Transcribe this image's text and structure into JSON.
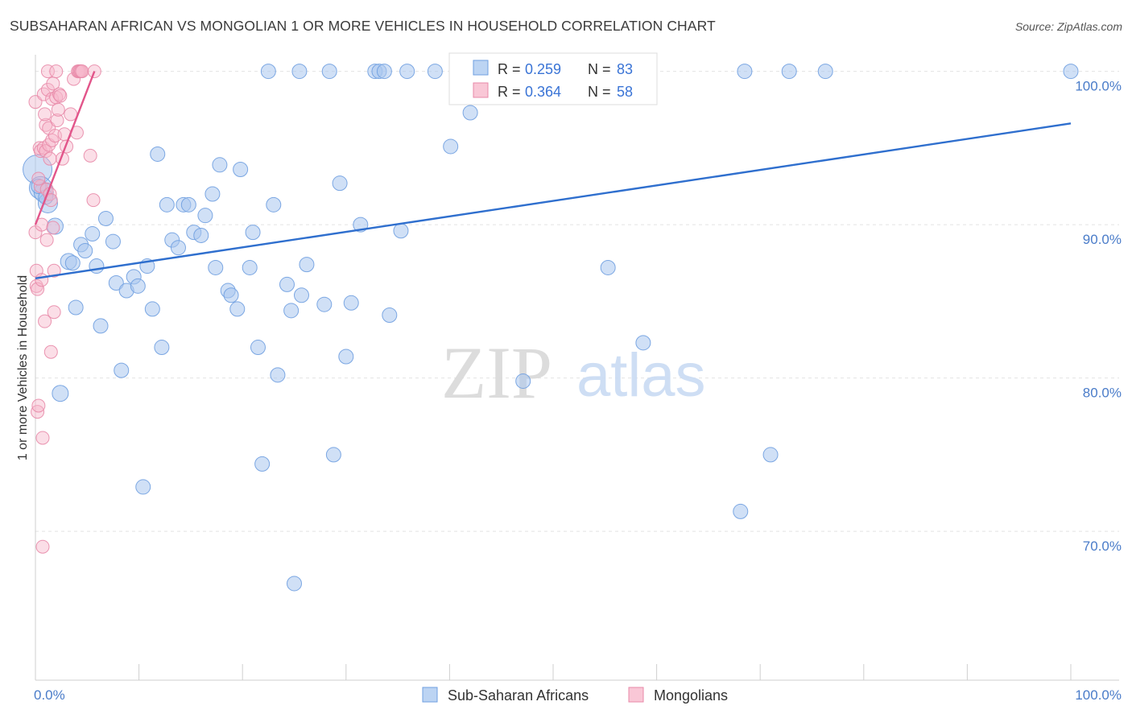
{
  "title": "SUBSAHARAN AFRICAN VS MONGOLIAN 1 OR MORE VEHICLES IN HOUSEHOLD CORRELATION CHART",
  "source": "Source: ZipAtlas.com",
  "watermark": {
    "zip": "ZIP",
    "atlas": "atlas"
  },
  "legend_top": [
    {
      "r_label": "R =",
      "r_value": "0.259",
      "n_label": "N =",
      "n_value": "83",
      "color": "#a9c6ef"
    },
    {
      "r_label": "R =",
      "r_value": "0.364",
      "n_label": "N =",
      "n_value": "58",
      "color": "#f6b5c9"
    }
  ],
  "legend_bottom": [
    {
      "label": "Sub-Saharan Africans",
      "color": "#a9c6ef"
    },
    {
      "label": "Mongolians",
      "color": "#f6b5c9"
    }
  ],
  "chart_data": {
    "type": "scatter",
    "xlabel": "",
    "ylabel": "1 or more Vehicles in Household",
    "xlim": [
      0,
      100
    ],
    "ylim": [
      60.3,
      101.5
    ],
    "x_tick_labels": [
      {
        "value": 0,
        "label": "0.0%"
      },
      {
        "value": 100,
        "label": "100.0%"
      }
    ],
    "x_minor_ticks": [
      0,
      10,
      20,
      30,
      40,
      50,
      60,
      70,
      80,
      90,
      100
    ],
    "y_ticks": [
      {
        "value": 70,
        "label": "70.0%"
      },
      {
        "value": 80,
        "label": "80.0%"
      },
      {
        "value": 90,
        "label": "90.0%"
      },
      {
        "value": 100,
        "label": "100.0%"
      }
    ],
    "grid": true,
    "series": [
      {
        "name": "Sub-Saharan Africans",
        "color": "#a9c6ef",
        "stroke": "#6f9fe0",
        "trend_color": "#2f6fce",
        "trend": [
          [
            0,
            86.5
          ],
          [
            100,
            96.6
          ]
        ],
        "points": [
          [
            0.2,
            93.6,
            18
          ],
          [
            0.5,
            92.4,
            14
          ],
          [
            0.8,
            92.1,
            12
          ],
          [
            1.2,
            91.4,
            12
          ],
          [
            1.9,
            89.9,
            10
          ],
          [
            2.4,
            79.0,
            10
          ],
          [
            3.2,
            87.6,
            10
          ],
          [
            3.6,
            87.5,
            9
          ],
          [
            3.9,
            84.6,
            9
          ],
          [
            4.4,
            88.7,
            9
          ],
          [
            4.8,
            88.3,
            9
          ],
          [
            5.5,
            89.4,
            9
          ],
          [
            5.9,
            87.3,
            9
          ],
          [
            6.3,
            83.4,
            9
          ],
          [
            6.8,
            90.4,
            9
          ],
          [
            7.5,
            88.9,
            9
          ],
          [
            7.8,
            86.2,
            9
          ],
          [
            8.3,
            80.5,
            9
          ],
          [
            8.8,
            85.7,
            9
          ],
          [
            9.5,
            86.6,
            9
          ],
          [
            9.9,
            86.0,
            9
          ],
          [
            10.4,
            72.9,
            9
          ],
          [
            10.8,
            87.3,
            9
          ],
          [
            11.3,
            84.5,
            9
          ],
          [
            11.8,
            94.6,
            9
          ],
          [
            12.2,
            82.0,
            9
          ],
          [
            12.7,
            91.3,
            9
          ],
          [
            13.2,
            89.0,
            9
          ],
          [
            13.8,
            88.5,
            9
          ],
          [
            14.3,
            91.3,
            9
          ],
          [
            14.8,
            91.3,
            9
          ],
          [
            15.3,
            89.5,
            9
          ],
          [
            16.0,
            89.3,
            9
          ],
          [
            16.4,
            90.6,
            9
          ],
          [
            17.1,
            92.0,
            9
          ],
          [
            17.4,
            87.2,
            9
          ],
          [
            17.8,
            93.9,
            9
          ],
          [
            18.6,
            85.7,
            9
          ],
          [
            18.9,
            85.4,
            9
          ],
          [
            19.5,
            84.5,
            9
          ],
          [
            19.8,
            93.6,
            9
          ],
          [
            20.7,
            87.2,
            9
          ],
          [
            21.0,
            89.5,
            9
          ],
          [
            21.5,
            82.0,
            9
          ],
          [
            21.9,
            74.4,
            9
          ],
          [
            22.5,
            100.0,
            9
          ],
          [
            23.0,
            91.3,
            9
          ],
          [
            23.4,
            80.2,
            9
          ],
          [
            24.3,
            86.1,
            9
          ],
          [
            24.7,
            84.4,
            9
          ],
          [
            25.0,
            66.6,
            9
          ],
          [
            25.5,
            100.0,
            9
          ],
          [
            25.7,
            85.4,
            9
          ],
          [
            26.2,
            87.4,
            9
          ],
          [
            27.9,
            84.8,
            9
          ],
          [
            28.4,
            100.0,
            9
          ],
          [
            28.8,
            75.0,
            9
          ],
          [
            29.4,
            92.7,
            9
          ],
          [
            30.0,
            81.4,
            9
          ],
          [
            30.5,
            84.9,
            9
          ],
          [
            31.4,
            90.0,
            9
          ],
          [
            32.8,
            100.0,
            9
          ],
          [
            33.2,
            100.0,
            9
          ],
          [
            33.7,
            100.0,
            9
          ],
          [
            34.2,
            84.1,
            9
          ],
          [
            35.3,
            89.6,
            9
          ],
          [
            35.9,
            100.0,
            9
          ],
          [
            38.6,
            100.0,
            9
          ],
          [
            40.1,
            95.1,
            9
          ],
          [
            42.0,
            97.3,
            9
          ],
          [
            47.1,
            79.8,
            9
          ],
          [
            53.0,
            100.0,
            9
          ],
          [
            55.3,
            87.2,
            9
          ],
          [
            58.2,
            100.0,
            9
          ],
          [
            58.7,
            82.3,
            9
          ],
          [
            68.1,
            71.3,
            9
          ],
          [
            68.5,
            100.0,
            9
          ],
          [
            71.0,
            75.0,
            9
          ],
          [
            72.8,
            100.0,
            9
          ],
          [
            76.3,
            100.0,
            9
          ],
          [
            100.0,
            100.0,
            9
          ],
          [
            0.3,
            92.5,
            9
          ],
          [
            1.0,
            91.8,
            9
          ]
        ]
      },
      {
        "name": "Mongolians",
        "color": "#f6b5c9",
        "stroke": "#e889a8",
        "trend_color": "#e2558a",
        "trend": [
          [
            0,
            90.0
          ],
          [
            5.7,
            100.0
          ]
        ],
        "points": [
          [
            0.0,
            98.0,
            8
          ],
          [
            0.0,
            89.5,
            8
          ],
          [
            0.1,
            87.0,
            8
          ],
          [
            0.1,
            86.0,
            8
          ],
          [
            0.2,
            85.8,
            8
          ],
          [
            0.2,
            77.8,
            8
          ],
          [
            0.3,
            78.2,
            8
          ],
          [
            0.4,
            95.0,
            8
          ],
          [
            0.5,
            94.8,
            8
          ],
          [
            0.5,
            92.5,
            8
          ],
          [
            0.6,
            90.0,
            8
          ],
          [
            0.6,
            86.4,
            8
          ],
          [
            0.7,
            76.1,
            8
          ],
          [
            0.7,
            69.0,
            8
          ],
          [
            0.8,
            98.5,
            8
          ],
          [
            0.8,
            95.0,
            8
          ],
          [
            0.9,
            83.7,
            8
          ],
          [
            1.0,
            96.5,
            8
          ],
          [
            1.0,
            94.8,
            8
          ],
          [
            1.1,
            92.3,
            8
          ],
          [
            1.1,
            89.0,
            8
          ],
          [
            1.2,
            100.0,
            8
          ],
          [
            1.2,
            98.8,
            8
          ],
          [
            1.3,
            96.3,
            8
          ],
          [
            1.3,
            95.2,
            8
          ],
          [
            1.4,
            92.0,
            8
          ],
          [
            1.5,
            91.6,
            8
          ],
          [
            1.5,
            81.7,
            8
          ],
          [
            1.6,
            98.2,
            8
          ],
          [
            1.6,
            95.5,
            8
          ],
          [
            1.7,
            99.2,
            8
          ],
          [
            1.7,
            89.8,
            8
          ],
          [
            1.8,
            84.3,
            8
          ],
          [
            1.8,
            87.0,
            8
          ],
          [
            1.9,
            95.8,
            8
          ],
          [
            2.0,
            100.0,
            8
          ],
          [
            2.0,
            98.3,
            8
          ],
          [
            2.1,
            96.8,
            8
          ],
          [
            2.2,
            97.5,
            8
          ],
          [
            2.3,
            98.5,
            8
          ],
          [
            2.4,
            98.4,
            8
          ],
          [
            2.6,
            94.3,
            8
          ],
          [
            2.8,
            95.9,
            8
          ],
          [
            3.0,
            95.1,
            8
          ],
          [
            3.4,
            97.2,
            8
          ],
          [
            3.7,
            99.5,
            8
          ],
          [
            4.0,
            96.0,
            8
          ],
          [
            4.1,
            100.0,
            8
          ],
          [
            4.2,
            100.0,
            8
          ],
          [
            4.3,
            100.0,
            8
          ],
          [
            4.4,
            100.0,
            8
          ],
          [
            4.5,
            100.0,
            8
          ],
          [
            5.6,
            91.6,
            8
          ],
          [
            5.7,
            100.0,
            8
          ],
          [
            0.9,
            97.2,
            8
          ],
          [
            1.4,
            94.3,
            8
          ],
          [
            0.3,
            93.0,
            8
          ],
          [
            5.3,
            94.5,
            8
          ]
        ]
      }
    ]
  }
}
